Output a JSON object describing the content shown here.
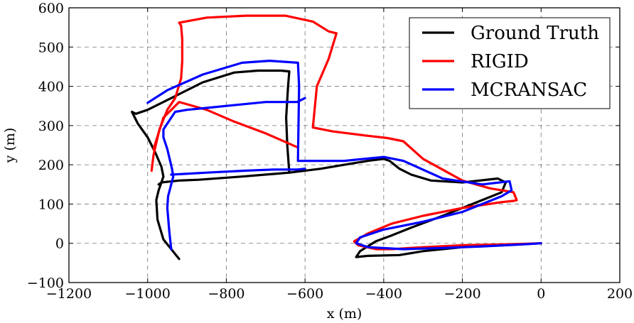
{
  "chart_data": {
    "type": "line",
    "title": "",
    "xlabel": "x (m)",
    "ylabel": "y (m)",
    "xlim": [
      -1200,
      200
    ],
    "ylim": [
      -100,
      600
    ],
    "xticks": [
      -1200,
      -1000,
      -800,
      -600,
      -400,
      -200,
      0,
      200
    ],
    "yticks": [
      -100,
      0,
      100,
      200,
      300,
      400,
      500,
      600
    ],
    "xtick_labels": [
      "−1200",
      "−1000",
      "−800",
      "−600",
      "−400",
      "−200",
      "0",
      "200"
    ],
    "ytick_labels": [
      "−100",
      "0",
      "100",
      "200",
      "300",
      "400",
      "500",
      "600"
    ],
    "grid": true,
    "legend_position": "top-right",
    "series": [
      {
        "name": "Ground Truth",
        "color": "#000000",
        "x": [
          -920,
          -960,
          -975,
          -978,
          -972,
          -965,
          -920,
          -870,
          -760,
          -640,
          -560,
          -500,
          -440,
          -400,
          -385,
          -360,
          -330,
          -280,
          -200,
          -110,
          -90,
          -100,
          -150,
          -250,
          -330,
          -380,
          -420,
          -460,
          -470,
          -440,
          -360,
          -300,
          -200,
          -100,
          0
        ],
        "y": [
          -40,
          10,
          60,
          110,
          135,
          155,
          160,
          162,
          170,
          180,
          190,
          200,
          210,
          215,
          210,
          190,
          175,
          160,
          155,
          165,
          155,
          130,
          110,
          70,
          40,
          20,
          5,
          -20,
          -35,
          -32,
          -30,
          -20,
          -10,
          -5,
          0
        ],
        "x2": [
          -640,
          -645,
          -648,
          -643,
          -640,
          -660,
          -720,
          -780,
          -860,
          -940,
          -1000,
          -1030,
          -1040,
          -1025,
          -1000,
          -980,
          -965,
          -960,
          -965,
          -972
        ],
        "y2": [
          180,
          250,
          320,
          400,
          438,
          440,
          440,
          435,
          410,
          370,
          340,
          330,
          335,
          305,
          270,
          230,
          195,
          170,
          155,
          150
        ]
      },
      {
        "name": "RIGID",
        "color": "#ff0000",
        "x": [
          -990,
          -985,
          -970,
          -950,
          -930,
          -915,
          -912,
          -912,
          -915,
          -920,
          -850,
          -750,
          -650,
          -580,
          -540,
          -520,
          -540,
          -570,
          -580,
          -530,
          -450,
          -390,
          -350,
          -300,
          -200,
          -130,
          -70,
          -62,
          -70,
          -100,
          -200,
          -300,
          -380,
          -440,
          -475,
          -465,
          -420,
          -380,
          -300,
          -200,
          -100,
          0
        ],
        "y": [
          185,
          225,
          290,
          340,
          370,
          420,
          465,
          520,
          555,
          562,
          575,
          580,
          580,
          565,
          540,
          535,
          470,
          400,
          295,
          285,
          275,
          268,
          260,
          215,
          160,
          140,
          130,
          110,
          108,
          105,
          90,
          70,
          50,
          25,
          5,
          -5,
          -15,
          -15,
          -10,
          -5,
          -3,
          0
        ],
        "x2": [
          -620,
          -700,
          -780,
          -850,
          -920,
          -960,
          -985
        ],
        "y2": [
          245,
          280,
          310,
          340,
          360,
          320,
          240
        ]
      },
      {
        "name": "MCRANSAC",
        "color": "#0000ff",
        "x": [
          -940,
          -945,
          -950,
          -948,
          -940,
          -935,
          -938,
          -950,
          -960,
          -960,
          -950,
          -940,
          -930,
          -900,
          -850,
          -800,
          -700,
          -620,
          -600
        ],
        "y": [
          -15,
          30,
          90,
          120,
          150,
          170,
          190,
          240,
          270,
          290,
          305,
          320,
          335,
          340,
          345,
          350,
          360,
          360,
          370
        ],
        "x2": [
          -940,
          -850,
          -750,
          -680,
          -620,
          -600
        ],
        "y2": [
          175,
          180,
          185,
          188,
          188,
          190
        ],
        "x3": [
          -1000,
          -950,
          -860,
          -760,
          -690,
          -618,
          -615,
          -618,
          -500,
          -400,
          -350,
          -250,
          -150,
          -80,
          -75,
          -100,
          -200,
          -300,
          -400,
          -460,
          -470,
          -440,
          -350,
          -250,
          -150,
          -50,
          0
        ],
        "y3": [
          358,
          390,
          430,
          460,
          465,
          460,
          400,
          210,
          210,
          220,
          210,
          165,
          150,
          158,
          135,
          120,
          80,
          55,
          35,
          15,
          0,
          -10,
          -15,
          -12,
          -8,
          -3,
          0
        ]
      }
    ]
  }
}
